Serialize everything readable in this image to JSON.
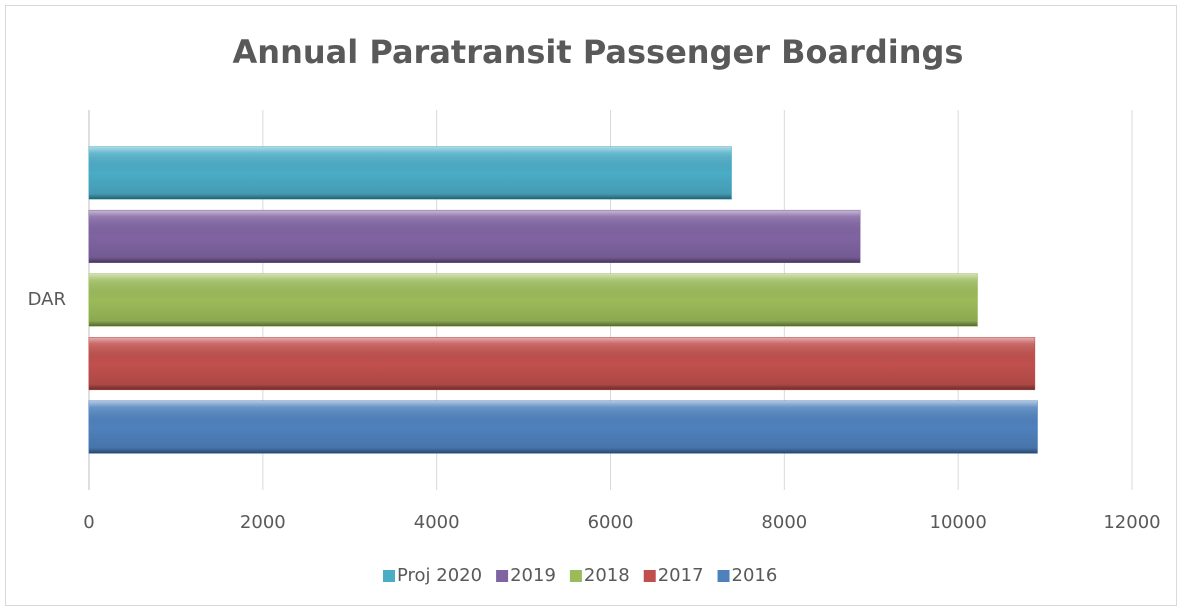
{
  "chart_data": {
    "type": "hbar",
    "title": "Annual Paratransit Passenger Boardings",
    "categories": [
      "DAR"
    ],
    "series": [
      {
        "name": "Proj 2020",
        "color": "#4bacc6",
        "values": [
          7390
        ]
      },
      {
        "name": "2019",
        "color": "#8064a2",
        "values": [
          8870
        ]
      },
      {
        "name": "2018",
        "color": "#9bbb59",
        "values": [
          10220
        ]
      },
      {
        "name": "2017",
        "color": "#c0504d",
        "values": [
          10880
        ]
      },
      {
        "name": "2016",
        "color": "#4f81bd",
        "values": [
          10910
        ]
      }
    ],
    "xlim": [
      0,
      12000
    ],
    "xticks": [
      0,
      2000,
      4000,
      6000,
      8000,
      10000,
      12000
    ],
    "grid": true,
    "legend": "bottom"
  }
}
